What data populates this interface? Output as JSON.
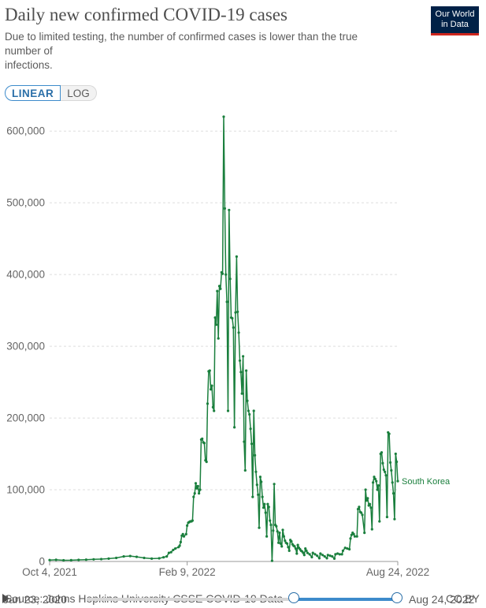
{
  "header": {
    "title": "Daily new confirmed COVID-19 cases",
    "subtitle_lines": [
      "Due to limited testing, the number of confirmed cases is lower than the true",
      "number of",
      "infections."
    ],
    "logo_line1": "Our World",
    "logo_line2": "in Data"
  },
  "controls": {
    "linear_label": "LINEAR",
    "log_label": "LOG",
    "selected": "LINEAR"
  },
  "footer": {
    "source": "Source: Johns Hopkins University CSSE COVID-19 Data",
    "license": "CC BY",
    "timeline_start": "Jan 23, 2020",
    "timeline_end": "Aug 24, 2022"
  },
  "colors": {
    "series": "#1a7f3d",
    "grid": "#dddddd",
    "axis_text": "#666666",
    "accent": "#3d8bcb"
  },
  "chart_data": {
    "type": "line",
    "x_start": "2021-10-04",
    "x_end": "2022-08-24",
    "xtick_labels": [
      "Oct 4, 2021",
      "Feb 9, 2022",
      "Aug 24, 2022"
    ],
    "xtick_dates": [
      "2021-10-04",
      "2022-02-09",
      "2022-08-24"
    ],
    "ytick_values": [
      0,
      100000,
      200000,
      300000,
      400000,
      500000,
      600000
    ],
    "ytick_labels": [
      "0",
      "100,000",
      "200,000",
      "300,000",
      "400,000",
      "500,000",
      "600,000"
    ],
    "ylim": [
      0,
      620000
    ],
    "grid": true,
    "legend": "end-of-line label",
    "series": [
      {
        "name": "South Korea",
        "color": "#1a7f3d",
        "points": [
          [
            "2021-10-04",
            2000
          ],
          [
            "2021-10-10",
            2300
          ],
          [
            "2021-10-17",
            1600
          ],
          [
            "2021-10-24",
            1800
          ],
          [
            "2021-10-31",
            2200
          ],
          [
            "2021-11-07",
            2500
          ],
          [
            "2021-11-14",
            3000
          ],
          [
            "2021-11-21",
            3300
          ],
          [
            "2021-11-28",
            4000
          ],
          [
            "2021-12-05",
            5000
          ],
          [
            "2021-12-12",
            7000
          ],
          [
            "2021-12-18",
            7600
          ],
          [
            "2021-12-24",
            6500
          ],
          [
            "2021-12-31",
            5000
          ],
          [
            "2022-01-07",
            4000
          ],
          [
            "2022-01-14",
            4400
          ],
          [
            "2022-01-18",
            5800
          ],
          [
            "2022-01-21",
            7000
          ],
          [
            "2022-01-23",
            12000
          ],
          [
            "2022-01-25",
            13000
          ],
          [
            "2022-01-27",
            16000
          ],
          [
            "2022-01-29",
            18000
          ],
          [
            "2022-02-01",
            20000
          ],
          [
            "2022-02-02",
            22000
          ],
          [
            "2022-02-03",
            27000
          ],
          [
            "2022-02-04",
            36000
          ],
          [
            "2022-02-05",
            38000
          ],
          [
            "2022-02-06",
            35000
          ],
          [
            "2022-02-08",
            38000
          ],
          [
            "2022-02-09",
            50000
          ],
          [
            "2022-02-10",
            54000
          ],
          [
            "2022-02-11",
            55000
          ],
          [
            "2022-02-12",
            56000
          ],
          [
            "2022-02-13",
            56000
          ],
          [
            "2022-02-14",
            57000
          ],
          [
            "2022-02-15",
            90000
          ],
          [
            "2022-02-16",
            95000
          ],
          [
            "2022-02-17",
            109000
          ],
          [
            "2022-02-18",
            102000
          ],
          [
            "2022-02-19",
            105000
          ],
          [
            "2022-02-20",
            95000
          ],
          [
            "2022-02-21",
            100000
          ],
          [
            "2022-02-22",
            170000
          ],
          [
            "2022-02-23",
            171000
          ],
          [
            "2022-02-24",
            166000
          ],
          [
            "2022-02-25",
            165000
          ],
          [
            "2022-02-26",
            141000
          ],
          [
            "2022-02-27",
            139000
          ],
          [
            "2022-02-28",
            220000
          ],
          [
            "2022-03-01",
            265000
          ],
          [
            "2022-03-02",
            266000
          ],
          [
            "2022-03-03",
            240000
          ],
          [
            "2022-03-04",
            245000
          ],
          [
            "2022-03-05",
            215000
          ],
          [
            "2022-03-06",
            210000
          ],
          [
            "2022-03-07",
            340000
          ],
          [
            "2022-03-08",
            330000
          ],
          [
            "2022-03-09",
            377000
          ],
          [
            "2022-03-10",
            311000
          ],
          [
            "2022-03-11",
            384000
          ],
          [
            "2022-03-12",
            380000
          ],
          [
            "2022-03-13",
            403000
          ],
          [
            "2022-03-14",
            401000
          ],
          [
            "2022-03-15",
            620000
          ],
          [
            "2022-03-16",
            492000
          ],
          [
            "2022-03-17",
            400000
          ],
          [
            "2022-03-18",
            362000
          ],
          [
            "2022-03-19",
            210000
          ],
          [
            "2022-03-20",
            490000
          ],
          [
            "2022-03-21",
            394000
          ],
          [
            "2022-03-22",
            340000
          ],
          [
            "2022-03-23",
            339000
          ],
          [
            "2022-03-24",
            326000
          ],
          [
            "2022-03-25",
            187000
          ],
          [
            "2022-03-26",
            347000
          ],
          [
            "2022-03-27",
            425000
          ],
          [
            "2022-03-28",
            348000
          ],
          [
            "2022-03-29",
            319000
          ],
          [
            "2022-03-30",
            280000
          ],
          [
            "2022-03-31",
            264000
          ],
          [
            "2022-04-01",
            234000
          ],
          [
            "2022-04-02",
            286000
          ],
          [
            "2022-04-03",
            167000
          ],
          [
            "2022-04-04",
            127000
          ],
          [
            "2022-04-05",
            266000
          ],
          [
            "2022-04-06",
            224000
          ],
          [
            "2022-04-07",
            210000
          ],
          [
            "2022-04-08",
            205000
          ],
          [
            "2022-04-09",
            185000
          ],
          [
            "2022-04-10",
            164000
          ],
          [
            "2022-04-11",
            90000
          ],
          [
            "2022-04-12",
            210000
          ],
          [
            "2022-04-13",
            148000
          ],
          [
            "2022-04-14",
            125000
          ],
          [
            "2022-04-15",
            107000
          ],
          [
            "2022-04-16",
            93000
          ],
          [
            "2022-04-17",
            47000
          ],
          [
            "2022-04-18",
            118000
          ],
          [
            "2022-04-19",
            111000
          ],
          [
            "2022-04-20",
            90000
          ],
          [
            "2022-04-21",
            75000
          ],
          [
            "2022-04-22",
            80000
          ],
          [
            "2022-04-23",
            68000
          ],
          [
            "2022-04-24",
            35000
          ],
          [
            "2022-04-25",
            80000
          ],
          [
            "2022-04-26",
            76000
          ],
          [
            "2022-04-27",
            57000
          ],
          [
            "2022-04-28",
            51000
          ],
          [
            "2022-04-29",
            1000
          ],
          [
            "2022-04-30",
            43000
          ],
          [
            "2022-05-01",
            108000
          ],
          [
            "2022-05-02",
            51000
          ],
          [
            "2022-05-03",
            49000
          ],
          [
            "2022-05-04",
            42000
          ],
          [
            "2022-05-05",
            26000
          ],
          [
            "2022-05-06",
            40000
          ],
          [
            "2022-05-07",
            25000
          ],
          [
            "2022-05-08",
            21000
          ],
          [
            "2022-05-09",
            44000
          ],
          [
            "2022-05-10",
            35000
          ],
          [
            "2022-05-11",
            29000
          ],
          [
            "2022-05-12",
            26000
          ],
          [
            "2022-05-13",
            25000
          ],
          [
            "2022-05-14",
            20000
          ],
          [
            "2022-05-15",
            15000
          ],
          [
            "2022-05-16",
            30000
          ],
          [
            "2022-05-17",
            28000
          ],
          [
            "2022-05-18",
            24000
          ],
          [
            "2022-05-19",
            22000
          ],
          [
            "2022-05-20",
            21000
          ],
          [
            "2022-05-21",
            18000
          ],
          [
            "2022-05-22",
            11000
          ],
          [
            "2022-05-23",
            23000
          ],
          [
            "2022-05-24",
            19000
          ],
          [
            "2022-05-25",
            17000
          ],
          [
            "2022-05-26",
            15000
          ],
          [
            "2022-05-27",
            14000
          ],
          [
            "2022-05-28",
            12000
          ],
          [
            "2022-05-29",
            9000
          ],
          [
            "2022-05-30",
            18000
          ],
          [
            "2022-05-31",
            15000
          ],
          [
            "2022-06-01",
            12000
          ],
          [
            "2022-06-03",
            10000
          ],
          [
            "2022-06-05",
            6000
          ],
          [
            "2022-06-06",
            12000
          ],
          [
            "2022-06-08",
            10000
          ],
          [
            "2022-06-10",
            8000
          ],
          [
            "2022-06-12",
            4500
          ],
          [
            "2022-06-13",
            11000
          ],
          [
            "2022-06-15",
            9000
          ],
          [
            "2022-06-17",
            7000
          ],
          [
            "2022-06-19",
            4500
          ],
          [
            "2022-06-20",
            9000
          ],
          [
            "2022-06-22",
            8000
          ],
          [
            "2022-06-24",
            7000
          ],
          [
            "2022-06-26",
            4000
          ],
          [
            "2022-06-27",
            10000
          ],
          [
            "2022-06-29",
            11000
          ],
          [
            "2022-07-01",
            10000
          ],
          [
            "2022-07-03",
            10000
          ],
          [
            "2022-07-04",
            15000
          ],
          [
            "2022-07-06",
            19000
          ],
          [
            "2022-07-08",
            18000
          ],
          [
            "2022-07-10",
            17000
          ],
          [
            "2022-07-11",
            32000
          ],
          [
            "2022-07-12",
            37000
          ],
          [
            "2022-07-13",
            40000
          ],
          [
            "2022-07-14",
            38000
          ],
          [
            "2022-07-15",
            35000
          ],
          [
            "2022-07-17",
            35000
          ],
          [
            "2022-07-18",
            73000
          ],
          [
            "2022-07-19",
            76000
          ],
          [
            "2022-07-20",
            69000
          ],
          [
            "2022-07-21",
            68000
          ],
          [
            "2022-07-22",
            65000
          ],
          [
            "2022-07-24",
            40000
          ],
          [
            "2022-07-25",
            100000
          ],
          [
            "2022-07-26",
            85000
          ],
          [
            "2022-07-27",
            88000
          ],
          [
            "2022-07-28",
            78000
          ],
          [
            "2022-07-29",
            80000
          ],
          [
            "2022-07-30",
            75000
          ],
          [
            "2022-07-31",
            45000
          ],
          [
            "2022-08-01",
            110000
          ],
          [
            "2022-08-02",
            118000
          ],
          [
            "2022-08-03",
            115000
          ],
          [
            "2022-08-04",
            112000
          ],
          [
            "2022-08-05",
            100000
          ],
          [
            "2022-08-06",
            106000
          ],
          [
            "2022-08-07",
            56000
          ],
          [
            "2022-08-08",
            150000
          ],
          [
            "2022-08-09",
            152000
          ],
          [
            "2022-08-10",
            137000
          ],
          [
            "2022-08-11",
            128000
          ],
          [
            "2022-08-12",
            125000
          ],
          [
            "2022-08-13",
            120000
          ],
          [
            "2022-08-14",
            62000
          ],
          [
            "2022-08-15",
            180000
          ],
          [
            "2022-08-16",
            178000
          ],
          [
            "2022-08-17",
            138000
          ],
          [
            "2022-08-18",
            127000
          ],
          [
            "2022-08-19",
            110000
          ],
          [
            "2022-08-20",
            95000
          ],
          [
            "2022-08-21",
            59000
          ],
          [
            "2022-08-22",
            150000
          ],
          [
            "2022-08-23",
            139000
          ],
          [
            "2022-08-24",
            112000
          ]
        ]
      }
    ]
  }
}
